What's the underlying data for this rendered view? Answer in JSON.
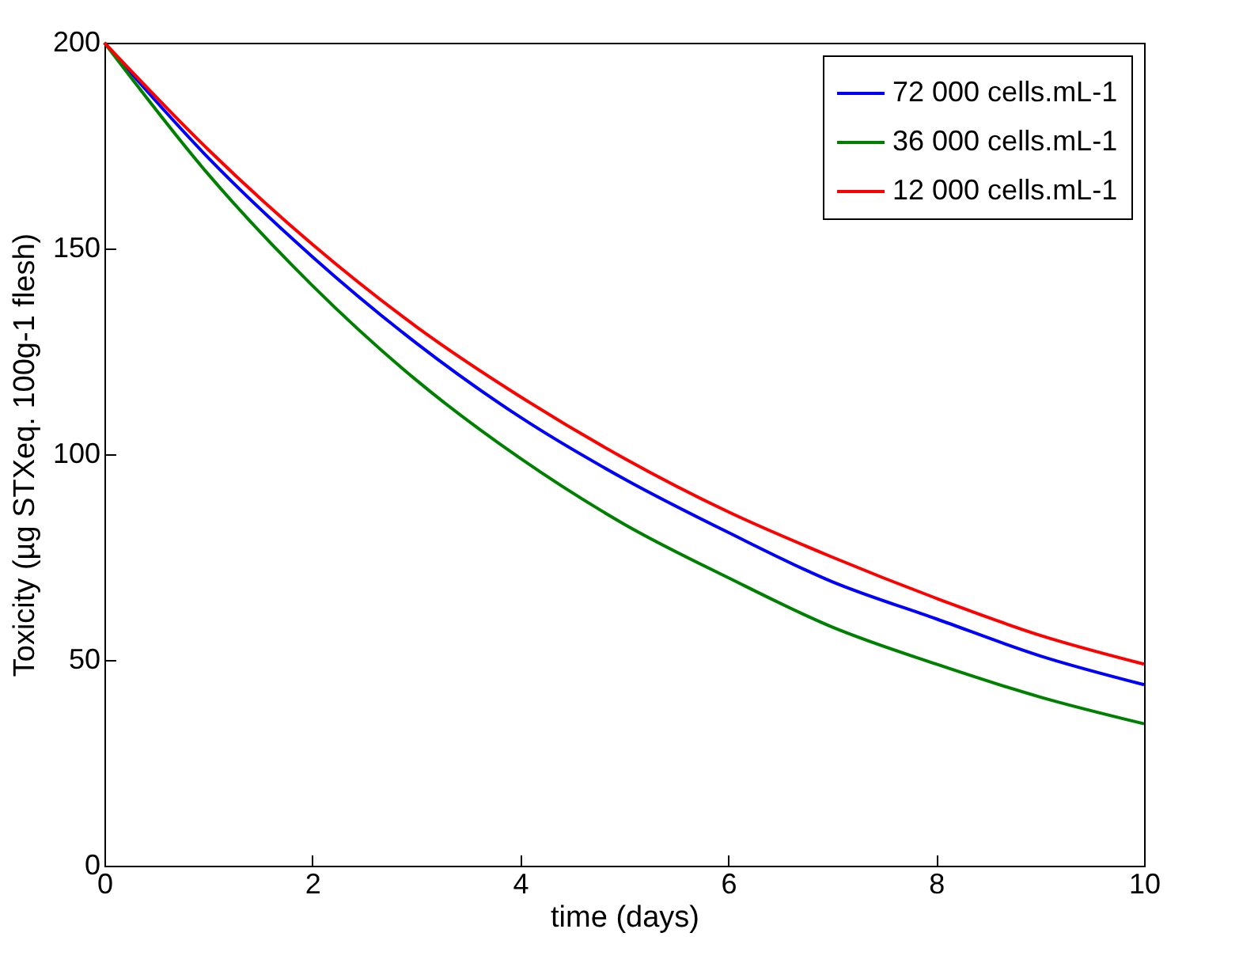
{
  "chart_data": {
    "type": "line",
    "xlabel": "time (days)",
    "ylabel": "Toxicity (µg STXeq. 100g-1 flesh)",
    "x": [
      0,
      1,
      2,
      3,
      4,
      5,
      6,
      7,
      8,
      9,
      10
    ],
    "series": [
      {
        "name": "72 000 cells.mL-1",
        "color": "#0000ff",
        "values": [
          200,
          172,
          148,
          127,
          109,
          94,
          81,
          69,
          60,
          51,
          44
        ]
      },
      {
        "name": "36 000 cells.mL-1",
        "color": "#008000",
        "values": [
          200,
          168,
          141,
          118,
          99,
          83,
          70,
          58,
          49,
          41,
          34.5
        ]
      },
      {
        "name": "12 000 cells.mL-1",
        "color": "#ff0000",
        "values": [
          200,
          174,
          151,
          131,
          114,
          99,
          86,
          75,
          65,
          56,
          49
        ]
      }
    ],
    "xlim": [
      0,
      10
    ],
    "xticks": [
      0,
      2,
      4,
      6,
      8,
      10
    ],
    "ylim": [
      0,
      200
    ],
    "yticks": [
      0,
      50,
      100,
      150,
      200
    ],
    "grid": false,
    "legend": "top right",
    "marker": "none",
    "line_style": "solid"
  }
}
